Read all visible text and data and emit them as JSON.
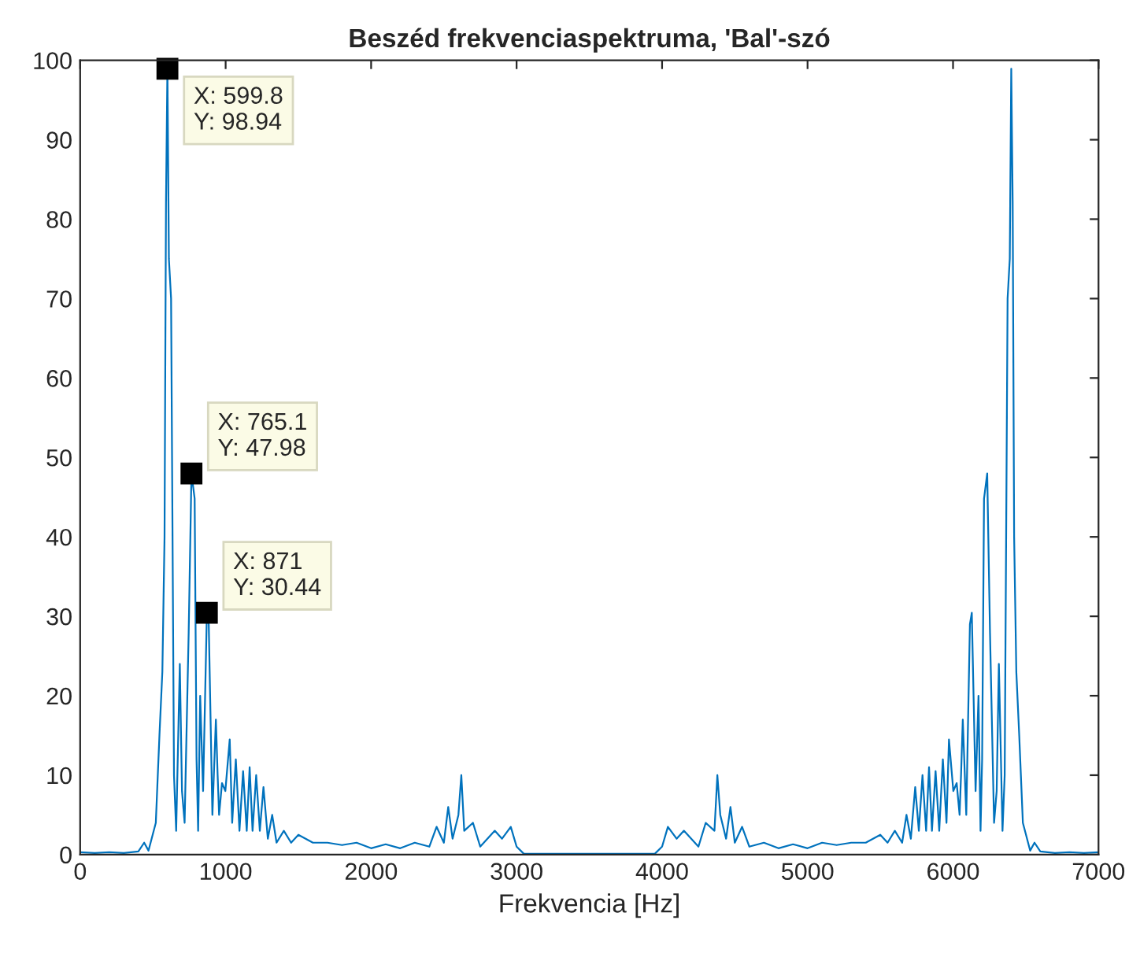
{
  "chart_data": {
    "type": "line",
    "title": "Beszéd frekvenciaspektruma, 'Bal'-szó",
    "xlabel": "Frekvencia [Hz]",
    "series": [
      {
        "color": "#0072bd",
        "x": [
          0,
          100,
          200,
          300,
          400,
          440,
          470,
          520,
          545,
          565,
          580,
          590,
          599.8,
          610,
          625,
          645,
          660,
          685,
          700,
          718,
          746,
          765.1,
          787,
          800,
          811,
          825,
          845,
          871,
          884,
          909,
          933,
          945,
          955,
          975,
          998,
          1028,
          1045,
          1070,
          1095,
          1120,
          1145,
          1165,
          1185,
          1210,
          1235,
          1260,
          1290,
          1320,
          1350,
          1400,
          1450,
          1500,
          1600,
          1700,
          1800,
          1900,
          2000,
          2100,
          2200,
          2300,
          2400,
          2450,
          2500,
          2530,
          2560,
          2600,
          2620,
          2640,
          2700,
          2750,
          2850,
          2900,
          2960,
          3000,
          3050,
          3200,
          3500,
          3800,
          3950,
          4000,
          4040,
          4100,
          4150,
          4250,
          4300,
          4360,
          4380,
          4400,
          4440,
          4470,
          4500,
          4550,
          4600,
          4700,
          4800,
          4900,
          5000,
          5100,
          5200,
          5300,
          5400,
          5500,
          5550,
          5600,
          5650,
          5680,
          5710,
          5740,
          5765,
          5790,
          5815,
          5835,
          5855,
          5880,
          5905,
          5930,
          5955,
          5972,
          6002,
          6025,
          6045,
          6055,
          6067,
          6091,
          6116,
          6129,
          6155,
          6175,
          6189,
          6200,
          6213,
          6234.9,
          6254,
          6282,
          6300,
          6315,
          6340,
          6355,
          6375,
          6390,
          6400.2,
          6410,
          6420,
          6435,
          6455,
          6480,
          6530,
          6560,
          6600,
          6700,
          6800,
          6900,
          7000
        ],
        "values": [
          0.3,
          0.2,
          0.3,
          0.2,
          0.4,
          1.5,
          0.5,
          4,
          15,
          23,
          40,
          82,
          98.94,
          75,
          70,
          10,
          3,
          24,
          8,
          4,
          28,
          47.98,
          44.8,
          12,
          3,
          20,
          8,
          30.44,
          29,
          5,
          17,
          10,
          5,
          9,
          8,
          14.5,
          4,
          12,
          3,
          10.5,
          3,
          11,
          3,
          10,
          3,
          8.5,
          2,
          5,
          1.5,
          3,
          1.5,
          2.5,
          1.5,
          1.5,
          1.2,
          1.5,
          0.8,
          1.3,
          0.8,
          1.5,
          1,
          3.5,
          1.5,
          6,
          2,
          5,
          10,
          3,
          4,
          1,
          3,
          2,
          3.5,
          1,
          0.1,
          0.1,
          0.1,
          0.1,
          0.1,
          1,
          3.5,
          2,
          3,
          1,
          4,
          3,
          10,
          5,
          2,
          6,
          1.5,
          3.5,
          1,
          1.5,
          0.8,
          1.3,
          0.8,
          1.5,
          1.2,
          1.5,
          1.5,
          2.5,
          1.5,
          3,
          1.5,
          5,
          2,
          8.5,
          3,
          10,
          3,
          11,
          3,
          10.5,
          3,
          12,
          4,
          14.5,
          8,
          9,
          5,
          10,
          17,
          5,
          29,
          30.44,
          8,
          20,
          3,
          12,
          44.8,
          47.98,
          28,
          4,
          8,
          24,
          3,
          10,
          70,
          75,
          98.94,
          82,
          40,
          23,
          15,
          4,
          0.5,
          1.5,
          0.4,
          0.2,
          0.3,
          0.2,
          0.3
        ]
      }
    ],
    "annotations": [
      {
        "text": "X: 599.8\nY: 98.94",
        "x": 599.8,
        "y": 98.94
      },
      {
        "text": "X: 765.1\nY: 47.98",
        "x": 765.1,
        "y": 47.98
      },
      {
        "text": "X: 871\nY: 30.44",
        "x": 871,
        "y": 30.44
      }
    ],
    "xlim": [
      0,
      7000
    ],
    "ylim": [
      0,
      100
    ],
    "xticks": [
      0,
      1000,
      2000,
      3000,
      4000,
      5000,
      6000,
      7000
    ],
    "yticks": [
      0,
      10,
      20,
      30,
      40,
      50,
      60,
      70,
      80,
      90,
      100
    ],
    "grid": false,
    "legend": false,
    "marker": "none",
    "line_style": "solid"
  }
}
